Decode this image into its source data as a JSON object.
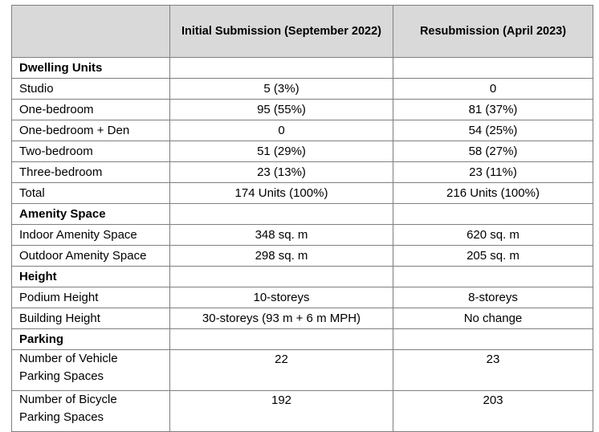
{
  "headers": {
    "col1": "",
    "col2": "Initial Submission (September 2022)",
    "col3": "Resubmission (April 2023)"
  },
  "sections": [
    {
      "title": "Dwelling Units",
      "rows": [
        {
          "label": "Studio",
          "initial": "5 (3%)",
          "resub": "0"
        },
        {
          "label": "One-bedroom",
          "initial": "95 (55%)",
          "resub": "81 (37%)"
        },
        {
          "label": "One-bedroom + Den",
          "initial": "0",
          "resub": "54 (25%)"
        },
        {
          "label": "Two-bedroom",
          "initial": "51 (29%)",
          "resub": "58 (27%)"
        },
        {
          "label": "Three-bedroom",
          "initial": "23 (13%)",
          "resub": "23 (11%)"
        },
        {
          "label": "Total",
          "initial": "174 Units (100%)",
          "resub": "216 Units (100%)"
        }
      ]
    },
    {
      "title": "Amenity Space",
      "rows": [
        {
          "label": "Indoor Amenity Space",
          "initial": "348 sq. m",
          "resub": "620 sq. m"
        },
        {
          "label": "Outdoor Amenity Space",
          "initial": "298 sq. m",
          "resub": "205 sq. m"
        }
      ]
    },
    {
      "title": "Height",
      "rows": [
        {
          "label": "Podium Height",
          "initial": "10-storeys",
          "resub": "8-storeys"
        },
        {
          "label": "Building Height",
          "initial": "30-storeys (93 m + 6 m MPH)",
          "resub": "No change"
        }
      ]
    },
    {
      "title": "Parking",
      "rows": [
        {
          "label_line1": "Number of Vehicle",
          "label_line2": "Parking Spaces",
          "initial": "22",
          "resub": "23"
        },
        {
          "label_line1": "Number of Bicycle",
          "label_line2": "Parking Spaces",
          "initial": "192",
          "resub": "203"
        }
      ]
    }
  ]
}
